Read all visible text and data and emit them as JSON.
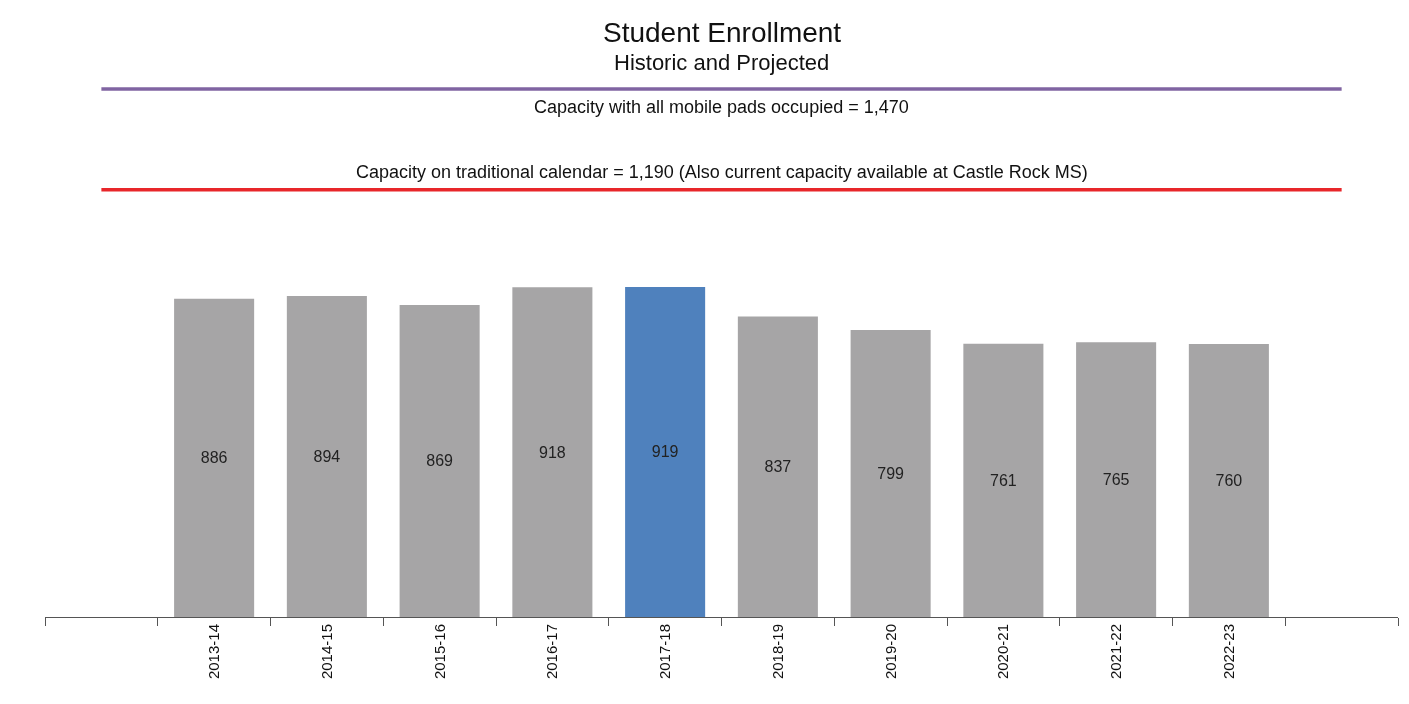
{
  "chart_data": {
    "type": "bar",
    "title": "Student Enrollment",
    "subtitle": "Historic and Projected",
    "categories": [
      null,
      "2013-14",
      "2014-15",
      "2015-16",
      "2016-17",
      "2017-18",
      "2018-19",
      "2019-20",
      "2020-21",
      "2021-22",
      "2022-23",
      null
    ],
    "values": [
      null,
      886,
      894,
      869,
      918,
      919,
      837,
      799,
      761,
      765,
      760,
      null
    ],
    "colors": [
      "#a6a5a6",
      "#a6a5a6",
      "#a6a5a6",
      "#a6a5a6",
      "#a6a5a6",
      "#4f81bd",
      "#a6a5a6",
      "#a6a5a6",
      "#a6a5a6",
      "#a6a5a6",
      "#a6a5a6",
      "#a6a5a6"
    ],
    "ylim": [
      0,
      1718
    ],
    "data_labels": true,
    "tick_labels": "x",
    "grid": false,
    "ref_lines": [
      {
        "axis": "y",
        "value": 1470,
        "label": "Capacity with all mobile pads occupied = 1,470",
        "color": "#8064a2"
      },
      {
        "axis": "y",
        "value": 1190,
        "label": "Capacity on traditional calendar = 1,190 (Also current capacity available at Castle Rock MS)",
        "color": "#e8262a"
      }
    ]
  }
}
